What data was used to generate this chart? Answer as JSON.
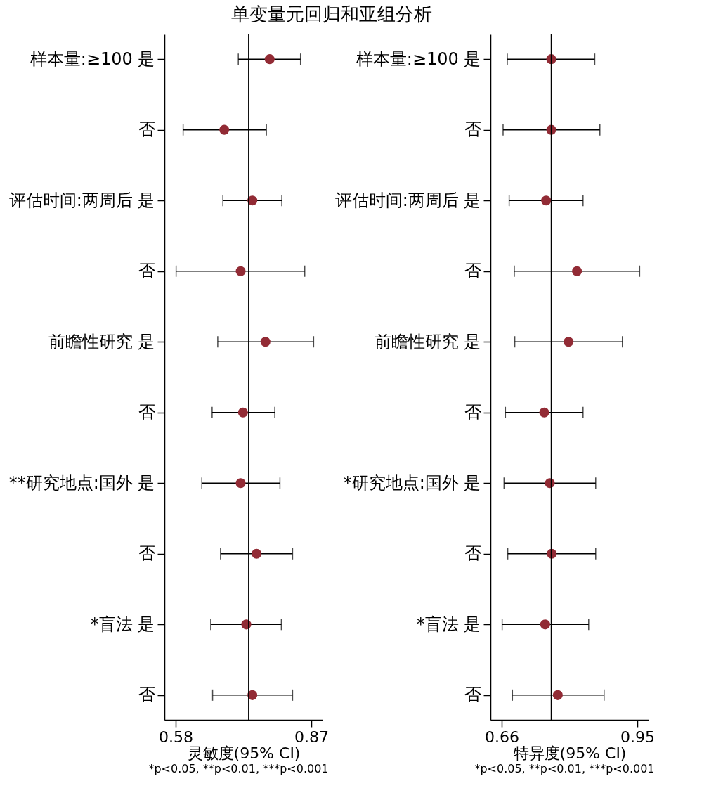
{
  "chart_data": [
    {
      "type": "scatter",
      "title": "单变量元回归和亚组分析",
      "orientation": "horizontal",
      "marker": "circle",
      "categories": [
        "样本量:≥100 是",
        "否",
        "评估时间:两周后 是",
        "否",
        "前瞻性研究 是",
        "否",
        "**研究地点:国外 是",
        "否",
        "*盲法 是",
        "否"
      ],
      "series": [
        {
          "color": "#922b35",
          "values": [
            0.781,
            0.684,
            0.744,
            0.719,
            0.772,
            0.724,
            0.719,
            0.753,
            0.731,
            0.744
          ],
          "errors": [
            [
              0.714,
              0.847
            ],
            [
              0.596,
              0.774
            ],
            [
              0.681,
              0.807
            ],
            [
              0.581,
              0.856
            ],
            [
              0.67,
              0.875
            ],
            [
              0.658,
              0.792
            ],
            [
              0.636,
              0.803
            ],
            [
              0.676,
              0.83
            ],
            [
              0.655,
              0.806
            ],
            [
              0.659,
              0.83
            ]
          ]
        }
      ],
      "xlim": [
        0.556,
        0.894
      ],
      "xticks": [
        0.58,
        0.87
      ],
      "xlabel": "灵敏度(95% CI)",
      "ref_lines": [
        {
          "axis": "x",
          "value": 0.736
        }
      ],
      "annotations": [
        "*p<0.05, **p<0.01, ***p<0.001"
      ]
    },
    {
      "type": "scatter",
      "orientation": "horizontal",
      "marker": "circle",
      "categories": [
        "样本量:≥100 是",
        "否",
        "评估时间:两周后 是",
        "否",
        "前瞻性研究 是",
        "否",
        "*研究地点:国外 是",
        "否",
        "*盲法 是",
        "否"
      ],
      "series": [
        {
          "color": "#922b35",
          "values": [
            0.766,
            0.766,
            0.755,
            0.821,
            0.803,
            0.751,
            0.763,
            0.767,
            0.753,
            0.78
          ],
          "errors": [
            [
              0.672,
              0.859
            ],
            [
              0.663,
              0.87
            ],
            [
              0.676,
              0.834
            ],
            [
              0.687,
              0.955
            ],
            [
              0.688,
              0.918
            ],
            [
              0.668,
              0.834
            ],
            [
              0.665,
              0.861
            ],
            [
              0.673,
              0.861
            ],
            [
              0.661,
              0.846
            ],
            [
              0.683,
              0.879
            ]
          ]
        }
      ],
      "xlim": [
        0.636,
        0.974
      ],
      "xticks": [
        0.66,
        0.95
      ],
      "xlabel": "特异度(95% CI)",
      "ref_lines": [
        {
          "axis": "x",
          "value": 0.766
        }
      ],
      "annotations": [
        "*p<0.05, **p<0.01, ***p<0.001"
      ]
    }
  ]
}
